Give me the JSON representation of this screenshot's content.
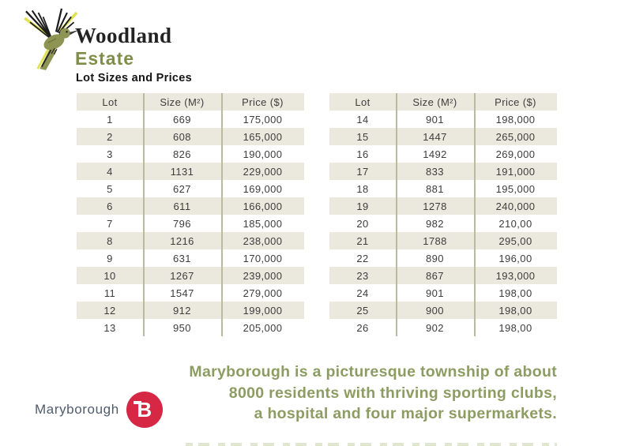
{
  "brand": {
    "name_line1": "Woodland",
    "name_line2": "Estate"
  },
  "section_title": "Lot Sizes and Prices",
  "table": {
    "headers": [
      "Lot",
      "Size (M²)",
      "Price ($)"
    ],
    "left_rows": [
      [
        "1",
        "669",
        "175,000"
      ],
      [
        "2",
        "608",
        "165,000"
      ],
      [
        "3",
        "826",
        "190,000"
      ],
      [
        "4",
        "1131",
        "229,000"
      ],
      [
        "5",
        "627",
        "169,000"
      ],
      [
        "6",
        "611",
        "166,000"
      ],
      [
        "7",
        "796",
        "185,000"
      ],
      [
        "8",
        "1216",
        "238,000"
      ],
      [
        "9",
        "631",
        "170,000"
      ],
      [
        "10",
        "1267",
        "239,000"
      ],
      [
        "11",
        "1547",
        "279,000"
      ],
      [
        "12",
        "912",
        "199,000"
      ],
      [
        "13",
        "950",
        "205,000"
      ]
    ],
    "right_rows": [
      [
        "14",
        "901",
        "198,000"
      ],
      [
        "15",
        "1447",
        "265,000"
      ],
      [
        "16",
        "1492",
        "269,000"
      ],
      [
        "17",
        "833",
        "191,000"
      ],
      [
        "18",
        "881",
        "195,000"
      ],
      [
        "19",
        "1278",
        "240,000"
      ],
      [
        "20",
        "982",
        "210,00"
      ],
      [
        "21",
        "1788",
        "295,00"
      ],
      [
        "22",
        "890",
        "196,00"
      ],
      [
        "23",
        "867",
        "193,000"
      ],
      [
        "24",
        "901",
        "198,00"
      ],
      [
        "25",
        "900",
        "198,00"
      ],
      [
        "26",
        "902",
        "198,00"
      ]
    ]
  },
  "footer": {
    "logo_text": "Maryborough",
    "logo_mark": "B",
    "tagline_lines": [
      "Maryborough is a picturesque township of about",
      "8000 residents with thriving sporting clubs,",
      "a hospital and four major supermarkets."
    ]
  },
  "colors": {
    "brand_olive": "#7e8d49",
    "tagline_olive": "#8d9c62",
    "row_beige": "#ebe9de",
    "divider": "#b8bba2",
    "maryborough_red": "#d62845",
    "maryborough_navy": "#4f5c6d"
  }
}
